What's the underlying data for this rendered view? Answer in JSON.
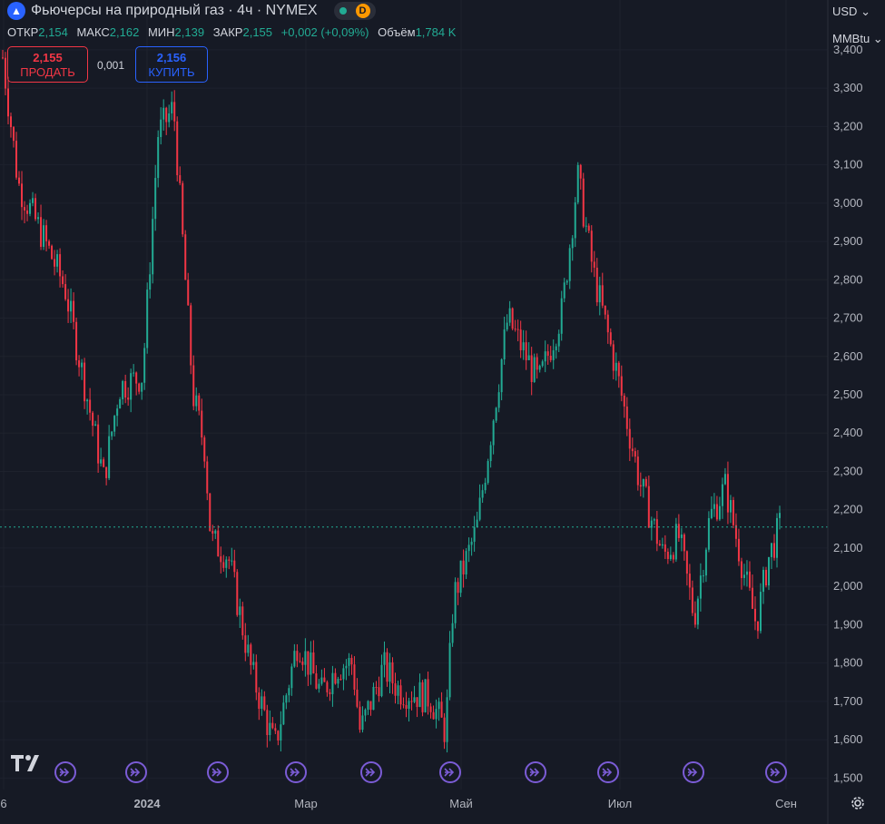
{
  "header": {
    "title": "Фьючерсы на природный газ · 4ч · NYMEX",
    "logo_icon": "flame-icon",
    "badge_d": "D",
    "ohlc": [
      {
        "label": "ОТКР",
        "value": "2,154"
      },
      {
        "label": "МАКС",
        "value": "2,162"
      },
      {
        "label": "МИН",
        "value": "2,139"
      },
      {
        "label": "ЗАКР",
        "value": "2,155"
      }
    ],
    "change": "+0,002 (+0,09%)",
    "volume_label": "Объём",
    "volume_value": "1,784 K"
  },
  "trade": {
    "sell_price": "2,155",
    "sell_label": "ПРОДАТЬ",
    "spread": "0,001",
    "buy_price": "2,156",
    "buy_label": "КУПИТЬ"
  },
  "axis": {
    "currency": "USD",
    "unit": "MMBtu"
  },
  "colors": {
    "up": "#22ab94",
    "down": "#f23645",
    "event": "#7b5cd6"
  },
  "chart_data": {
    "type": "candlestick",
    "ylim": [
      1.47,
      3.53
    ],
    "y_ticks": [
      1.5,
      1.6,
      1.7,
      1.8,
      1.9,
      2.0,
      2.1,
      2.2,
      2.3,
      2.4,
      2.5,
      2.6,
      2.7,
      2.8,
      2.9,
      3.0,
      3.1,
      3.2,
      3.3,
      3.4
    ],
    "y_tick_labels": [
      "1,500",
      "1,600",
      "1,700",
      "1,800",
      "1,900",
      "2,000",
      "2,100",
      "2,200",
      "2,300",
      "2,400",
      "2,500",
      "2,600",
      "2,700",
      "2,800",
      "2,900",
      "3,000",
      "3,100",
      "3,200",
      "3,300",
      "3,400"
    ],
    "x_labels": [
      "6",
      "2024",
      "Мар",
      "Май",
      "Июл",
      "Сен"
    ],
    "current_price": 2.155,
    "path": [
      [
        0,
        3.38
      ],
      [
        0.02,
        3.05
      ],
      [
        0.05,
        2.92
      ],
      [
        0.08,
        2.78
      ],
      [
        0.11,
        2.48
      ],
      [
        0.13,
        2.28
      ],
      [
        0.15,
        2.52
      ],
      [
        0.18,
        2.55
      ],
      [
        0.2,
        3.18
      ],
      [
        0.22,
        3.25
      ],
      [
        0.245,
        2.5
      ],
      [
        0.26,
        2.36
      ],
      [
        0.268,
        2.12
      ],
      [
        0.29,
        2.08
      ],
      [
        0.32,
        1.78
      ],
      [
        0.35,
        1.58
      ],
      [
        0.38,
        1.86
      ],
      [
        0.41,
        1.72
      ],
      [
        0.43,
        1.79
      ],
      [
        0.45,
        1.8
      ],
      [
        0.46,
        1.62
      ],
      [
        0.49,
        1.79
      ],
      [
        0.51,
        1.73
      ],
      [
        0.55,
        1.71
      ],
      [
        0.57,
        1.62
      ],
      [
        0.58,
        1.97
      ],
      [
        0.61,
        2.15
      ],
      [
        0.65,
        2.7
      ],
      [
        0.69,
        2.53
      ],
      [
        0.72,
        2.72
      ],
      [
        0.74,
        3.07
      ],
      [
        0.76,
        2.82
      ],
      [
        0.79,
        2.56
      ],
      [
        0.82,
        2.27
      ],
      [
        0.85,
        2.08
      ],
      [
        0.87,
        2.13
      ],
      [
        0.89,
        1.92
      ],
      [
        0.91,
        2.18
      ],
      [
        0.93,
        2.26
      ],
      [
        0.96,
        1.98
      ],
      [
        0.97,
        1.9
      ],
      [
        0.985,
        2.07
      ],
      [
        1.0,
        2.155
      ]
    ],
    "event_markers": 10
  }
}
